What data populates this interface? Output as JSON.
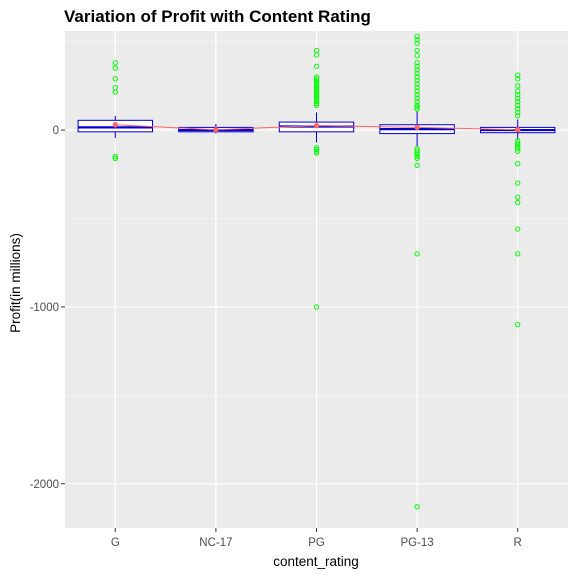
{
  "chart_data": {
    "type": "box",
    "title": "Variation of Profit with Content Rating",
    "xlabel": "content_rating",
    "ylabel": "Profit(in millions)",
    "categories": [
      "G",
      "NC-17",
      "PG",
      "PG-13",
      "R"
    ],
    "yticks": [
      -2000,
      -1000,
      0
    ],
    "ylim": [
      -2250,
      560
    ],
    "grid": true,
    "boxes": [
      {
        "category": "G",
        "q1": -10,
        "median": 15,
        "q3": 55,
        "whisker_low": -45,
        "whisker_high": 80,
        "mean": 30,
        "outliers": [
          380,
          350,
          290,
          240,
          215,
          -150,
          -160
        ]
      },
      {
        "category": "NC-17",
        "q1": -10,
        "median": 0,
        "q3": 15,
        "whisker_low": -20,
        "whisker_high": 35,
        "mean": 2,
        "outliers": []
      },
      {
        "category": "PG",
        "q1": -10,
        "median": 20,
        "q3": 45,
        "whisker_low": -70,
        "whisker_high": 100,
        "mean": 25,
        "outliers": [
          450,
          425,
          360,
          300,
          290,
          280,
          270,
          260,
          250,
          240,
          230,
          220,
          210,
          200,
          190,
          180,
          170,
          160,
          150,
          140,
          -100,
          -110,
          -120,
          -130,
          -1000
        ]
      },
      {
        "category": "PG-13",
        "q1": -20,
        "median": 5,
        "q3": 30,
        "whisker_low": -95,
        "whisker_high": 110,
        "mean": 15,
        "outliers": [
          530,
          510,
          490,
          450,
          420,
          380,
          360,
          340,
          320,
          300,
          280,
          260,
          240,
          220,
          200,
          180,
          160,
          140,
          130,
          120,
          -105,
          -115,
          -130,
          -140,
          -150,
          -160,
          -200,
          -700,
          -2130
        ]
      },
      {
        "category": "R",
        "q1": -15,
        "median": 0,
        "q3": 15,
        "whisker_low": -55,
        "whisker_high": 60,
        "mean": 2,
        "outliers": [
          310,
          290,
          250,
          220,
          200,
          180,
          160,
          140,
          120,
          100,
          80,
          -60,
          -75,
          -85,
          -95,
          -105,
          -120,
          -190,
          -300,
          -380,
          -410,
          -560,
          -700,
          -1100
        ]
      }
    ],
    "colors": {
      "panel": "#ebebeb",
      "grid_major": "#ffffff",
      "grid_minor": "#f5f5f5",
      "box": "#0000cd",
      "outlier": "#00ff00",
      "mean_line": "#ff6666"
    }
  }
}
